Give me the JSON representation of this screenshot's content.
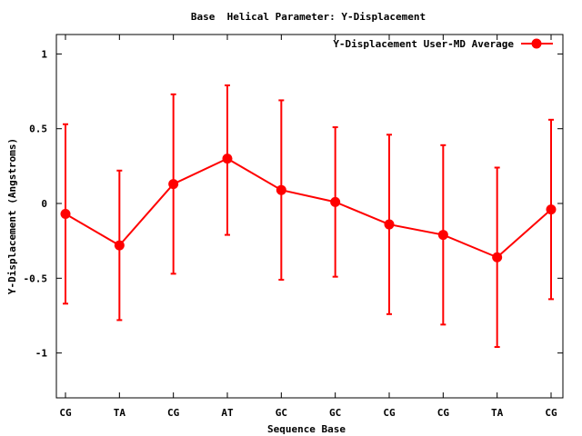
{
  "chart_data": {
    "type": "line",
    "title": "Base  Helical Parameter: Y-Displacement",
    "xlabel": "Sequence Base",
    "ylabel": "Y-Displacement (Angstroms)",
    "categories": [
      "CG",
      "TA",
      "CG",
      "AT",
      "GC",
      "GC",
      "CG",
      "CG",
      "TA",
      "CG"
    ],
    "ylim": [
      -1.3,
      1.13
    ],
    "yticks": [
      -1,
      -0.5,
      0,
      0.5,
      1
    ],
    "ytick_labels": [
      "-1",
      "-0.5",
      "0",
      "0.5",
      "1"
    ],
    "grid": false,
    "legend_position": "top-right",
    "series": [
      {
        "name": "Y-Displacement User-MD Average",
        "color": "#ff0000",
        "values": [
          -0.07,
          -0.28,
          0.13,
          0.3,
          0.09,
          0.01,
          -0.14,
          -0.21,
          -0.36,
          -0.04
        ],
        "error_low": [
          -0.67,
          -0.78,
          -0.47,
          -0.21,
          -0.51,
          -0.49,
          -0.74,
          -0.81,
          -0.96,
          -0.64
        ],
        "error_high": [
          0.53,
          0.22,
          0.73,
          0.79,
          0.69,
          0.51,
          0.46,
          0.39,
          0.24,
          0.56
        ]
      }
    ]
  }
}
